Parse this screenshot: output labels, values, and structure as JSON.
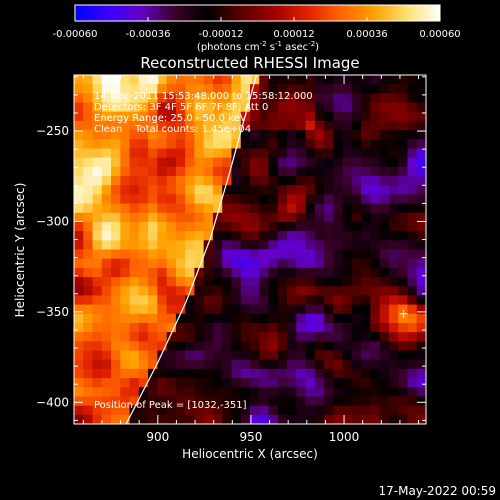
{
  "colors": {
    "background": "#000000",
    "foreground": "#ffffff",
    "limb_line": "#ffffff",
    "colormap": [
      "#0000ff",
      "#3a00ff",
      "#6400c8",
      "#3a0028",
      "#000000",
      "#5a0000",
      "#a00000",
      "#e02000",
      "#ff6400",
      "#ffa000",
      "#ffe070",
      "#ffffff"
    ]
  },
  "colorbar": {
    "tick_labels": [
      "-0.00060",
      "-0.00036",
      "-0.00012",
      "0.00012",
      "0.00036",
      "0.00060"
    ],
    "tick_values": [
      -0.0006,
      -0.00036,
      -0.00012,
      0.00012,
      0.00036,
      0.0006
    ],
    "range": [
      -0.0006,
      0.0006
    ],
    "unit_main": "(photons cm",
    "unit_exp1": "-2",
    "unit_mid": " s",
    "unit_exp2": "-1",
    "unit_end": " asec",
    "unit_exp3": "-2",
    "unit_close": ")"
  },
  "chart_data": {
    "type": "heatmap",
    "title": "Reconstructed RHESSI Image",
    "xlabel": "Heliocentric X (arcsec)",
    "ylabel": "Heliocentric Y (arcsec)",
    "xlim": [
      855,
      1044
    ],
    "ylim": [
      -412,
      -219
    ],
    "x_ticks": [
      900,
      950,
      1000
    ],
    "y_ticks": [
      -400,
      -350,
      -300,
      -250
    ],
    "x_tick_labels": [
      "900",
      "950",
      "1000"
    ],
    "y_tick_labels": [
      "−400",
      "−350",
      "−300",
      "−250"
    ],
    "annotations": [
      "14-Dec-2011 15:53:48.000 to 15:58:12.000",
      "Detectors: 3F 4F 5F 6F 7F 8F, Att 0",
      "Energy Range: 25.0 - 50.0 keV",
      "Clean    Total counts: 1.45e+04"
    ],
    "peak_label": "Position of Peak = [1032,-351]",
    "peak": [
      1032,
      -351
    ],
    "limb_curve": [
      [
        883,
        -412
      ],
      [
        900,
        -378
      ],
      [
        915,
        -345
      ],
      [
        928,
        -310
      ],
      [
        938,
        -275
      ],
      [
        946,
        -245
      ],
      [
        953,
        -219
      ]
    ],
    "grid_cols": 38,
    "grid_rows": 38,
    "grid": false
  },
  "footer": {
    "timestamp": "17-May-2022 00:59"
  }
}
